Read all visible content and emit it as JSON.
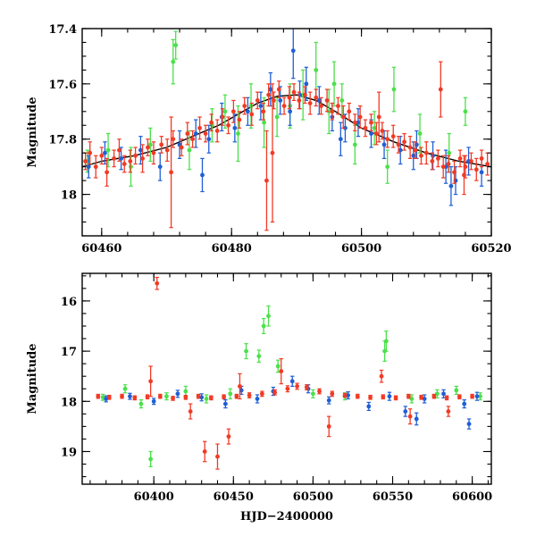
{
  "colors": {
    "red": "#f23a24",
    "blue": "#1f5fd6",
    "green": "#4be04b",
    "model": "#000000"
  },
  "chart_data": [
    {
      "type": "scatter",
      "xlabel": "",
      "ylabel": "Magnitude",
      "xlim": [
        60457,
        60520
      ],
      "ylim": [
        18.15,
        17.4
      ],
      "y_inverted": true,
      "xticks": [
        60460,
        60480,
        60500,
        60520
      ],
      "xtick_labels": [
        "60460",
        "60480",
        "60500",
        "60520"
      ],
      "yticks": [
        17.4,
        17.6,
        17.8,
        18
      ],
      "ytick_labels": [
        "17.4",
        "17.6",
        "17.8",
        "18"
      ],
      "model_curve": {
        "x": [
          60457,
          60460,
          60465,
          60470,
          60475,
          60478,
          60481,
          60484,
          60487,
          60490,
          60493,
          60496,
          60500,
          60505,
          60510,
          60515,
          60520
        ],
        "y": [
          17.9,
          17.88,
          17.86,
          17.83,
          17.78,
          17.75,
          17.71,
          17.67,
          17.645,
          17.64,
          17.66,
          17.7,
          17.76,
          17.81,
          17.85,
          17.88,
          17.9
        ]
      },
      "series": [
        {
          "color_key": "red",
          "x": [
            60457.5,
            60458.2,
            60459.1,
            60460.0,
            60460.8,
            60461.9,
            60462.7,
            60463.5,
            60464.4,
            60465.2,
            60466.3,
            60467.1,
            60468.0,
            60469.2,
            60470.1,
            60471.0,
            60472.3,
            60473.2,
            60474.0,
            60475.1,
            60476.0,
            60476.9,
            60477.8,
            60478.6,
            60479.5,
            60480.3,
            60481.2,
            60482.0,
            60483.1,
            60484.0,
            60484.9,
            60485.7,
            60486.5,
            60487.3,
            60488.1,
            60488.9,
            60489.6,
            60490.4,
            60491.3,
            60492.1,
            60493.0,
            60493.8,
            60494.7,
            60495.5,
            60496.4,
            60497.2,
            60498.1,
            60499.0,
            60499.8,
            60500.6,
            60501.5,
            60502.3,
            60503.2,
            60504.0,
            60504.9,
            60505.7,
            60506.6,
            60507.5,
            60508.3,
            60509.2,
            60510.0,
            60510.9,
            60511.8,
            60512.6,
            60513.4,
            60514.3,
            60515.2,
            60516.0,
            60516.9,
            60517.7,
            60518.5,
            60519.4,
            60470.7,
            60486.3,
            60485.4,
            60502.7,
            60512.2,
            60515.8
          ],
          "y": [
            17.88,
            17.85,
            17.9,
            17.86,
            17.92,
            17.87,
            17.84,
            17.89,
            17.88,
            17.86,
            17.87,
            17.83,
            17.85,
            17.82,
            17.84,
            17.8,
            17.83,
            17.78,
            17.8,
            17.76,
            17.78,
            17.74,
            17.77,
            17.72,
            17.75,
            17.7,
            17.73,
            17.68,
            17.71,
            17.66,
            17.7,
            17.64,
            17.66,
            17.62,
            17.68,
            17.65,
            17.63,
            17.66,
            17.64,
            17.67,
            17.65,
            17.68,
            17.66,
            17.7,
            17.68,
            17.72,
            17.7,
            17.74,
            17.72,
            17.76,
            17.74,
            17.78,
            17.77,
            17.8,
            17.79,
            17.82,
            17.81,
            17.83,
            17.84,
            17.86,
            17.85,
            17.88,
            17.87,
            17.9,
            17.89,
            17.92,
            17.87,
            17.9,
            17.88,
            17.91,
            17.87,
            17.89,
            17.92,
            17.85,
            17.95,
            17.72,
            17.62,
            17.93
          ],
          "err": [
            0.03,
            0.04,
            0.04,
            0.03,
            0.05,
            0.03,
            0.04,
            0.03,
            0.04,
            0.03,
            0.05,
            0.03,
            0.04,
            0.03,
            0.04,
            0.03,
            0.03,
            0.04,
            0.03,
            0.04,
            0.03,
            0.03,
            0.04,
            0.03,
            0.03,
            0.04,
            0.03,
            0.03,
            0.04,
            0.03,
            0.03,
            0.04,
            0.03,
            0.03,
            0.03,
            0.04,
            0.03,
            0.03,
            0.03,
            0.04,
            0.03,
            0.03,
            0.04,
            0.03,
            0.03,
            0.04,
            0.03,
            0.03,
            0.04,
            0.03,
            0.03,
            0.04,
            0.03,
            0.03,
            0.04,
            0.03,
            0.03,
            0.04,
            0.03,
            0.03,
            0.04,
            0.03,
            0.03,
            0.04,
            0.03,
            0.04,
            0.03,
            0.04,
            0.03,
            0.04,
            0.03,
            0.04,
            0.2,
            0.25,
            0.18,
            0.09,
            0.1,
            0.07
          ]
        },
        {
          "color_key": "blue",
          "x": [
            60458.0,
            60460.5,
            60463.0,
            60466.0,
            60469.0,
            60472.0,
            60474.5,
            60476.5,
            60478.5,
            60480.5,
            60482.5,
            60484.5,
            60486.0,
            60487.5,
            60489.0,
            60490.5,
            60491.5,
            60493.5,
            60495.5,
            60497.5,
            60499.5,
            60501.5,
            60503.5,
            60506.0,
            60508.5,
            60511.0,
            60513.0,
            60514.5,
            60516.5,
            60518.5,
            60489.5,
            60475.5,
            60496.8,
            60508.0,
            60513.8
          ],
          "y": [
            17.9,
            17.85,
            17.87,
            17.84,
            17.9,
            17.82,
            17.78,
            17.8,
            17.72,
            17.76,
            17.7,
            17.68,
            17.62,
            17.66,
            17.7,
            17.64,
            17.6,
            17.66,
            17.72,
            17.76,
            17.74,
            17.78,
            17.82,
            17.84,
            17.82,
            17.86,
            17.9,
            17.95,
            17.88,
            17.92,
            17.48,
            17.93,
            17.8,
            17.86,
            17.97
          ],
          "err": [
            0.04,
            0.04,
            0.04,
            0.05,
            0.05,
            0.05,
            0.05,
            0.05,
            0.05,
            0.05,
            0.05,
            0.05,
            0.06,
            0.05,
            0.05,
            0.05,
            0.06,
            0.05,
            0.05,
            0.05,
            0.05,
            0.05,
            0.05,
            0.05,
            0.05,
            0.05,
            0.06,
            0.05,
            0.05,
            0.05,
            0.1,
            0.06,
            0.06,
            0.05,
            0.07
          ]
        },
        {
          "color_key": "green",
          "x": [
            60457.8,
            60461.0,
            60464.5,
            60467.5,
            60471.0,
            60471.4,
            60473.5,
            60477.0,
            60479.0,
            60481.0,
            60483.0,
            60485.0,
            60487.0,
            60489.0,
            60491.0,
            60493.0,
            60495.0,
            60497.0,
            60499.0,
            60502.0,
            60505.0,
            60509.0,
            60513.5,
            60516.0,
            60504.0,
            60495.8
          ],
          "y": [
            17.88,
            17.84,
            17.9,
            17.82,
            17.52,
            17.46,
            17.84,
            17.75,
            17.7,
            17.78,
            17.68,
            17.74,
            17.72,
            17.68,
            17.64,
            17.55,
            17.7,
            17.66,
            17.82,
            17.76,
            17.62,
            17.78,
            17.85,
            17.7,
            17.9,
            17.6
          ],
          "err": [
            0.04,
            0.06,
            0.07,
            0.06,
            0.08,
            0.05,
            0.07,
            0.06,
            0.06,
            0.1,
            0.08,
            0.09,
            0.07,
            0.08,
            0.09,
            0.1,
            0.08,
            0.06,
            0.07,
            0.06,
            0.08,
            0.07,
            0.07,
            0.05,
            0.06,
            0.08
          ]
        }
      ]
    },
    {
      "type": "scatter",
      "xlabel": "HJD−2400000",
      "ylabel": "Magnitude",
      "xlim": [
        60355,
        60612
      ],
      "ylim": [
        19.65,
        15.45
      ],
      "y_inverted": true,
      "xticks": [
        60400,
        60450,
        60500,
        60550,
        60600
      ],
      "xtick_labels": [
        "60400",
        "60450",
        "60500",
        "60550",
        "60600"
      ],
      "yticks": [
        16,
        17,
        18,
        19
      ],
      "ytick_labels": [
        "16",
        "17",
        "18",
        "19"
      ],
      "series": [
        {
          "color_key": "red",
          "x": [
            60365,
            60372,
            60380,
            60388,
            60396,
            60404,
            60412,
            60420,
            60428,
            60436,
            60444,
            60452,
            60460,
            60468,
            60476,
            60484,
            60490,
            60496,
            60504,
            60512,
            60520,
            60528,
            60536,
            60544,
            60552,
            60560,
            60568,
            60576,
            60584,
            60592,
            60600,
            60402,
            60432,
            60440,
            60447,
            60480,
            60510,
            60543,
            60561,
            60585,
            60398,
            60423,
            60454
          ],
          "y": [
            17.9,
            17.92,
            17.9,
            17.93,
            17.91,
            17.9,
            17.94,
            17.92,
            17.9,
            17.93,
            17.91,
            17.9,
            17.88,
            17.85,
            17.82,
            17.75,
            17.7,
            17.72,
            17.8,
            17.85,
            17.88,
            17.9,
            17.92,
            17.91,
            17.93,
            17.9,
            17.92,
            17.9,
            17.93,
            17.91,
            17.9,
            15.65,
            19.0,
            19.1,
            18.7,
            17.4,
            18.5,
            17.5,
            18.3,
            18.2,
            17.6,
            18.2,
            17.7
          ],
          "err": [
            0.04,
            0.04,
            0.04,
            0.04,
            0.04,
            0.04,
            0.04,
            0.04,
            0.04,
            0.04,
            0.04,
            0.04,
            0.05,
            0.05,
            0.05,
            0.06,
            0.06,
            0.05,
            0.05,
            0.05,
            0.04,
            0.04,
            0.04,
            0.04,
            0.04,
            0.04,
            0.04,
            0.04,
            0.04,
            0.04,
            0.04,
            0.12,
            0.2,
            0.25,
            0.15,
            0.25,
            0.2,
            0.12,
            0.15,
            0.1,
            0.3,
            0.15,
            0.25
          ]
        },
        {
          "color_key": "blue",
          "x": [
            60370,
            60385,
            60400,
            60415,
            60430,
            60445,
            60455,
            60465,
            60475,
            60487,
            60497,
            60510,
            60522,
            60535,
            60548,
            60558,
            60570,
            60582,
            60595,
            60603,
            60598,
            60565
          ],
          "y": [
            17.95,
            17.9,
            18.0,
            17.85,
            17.92,
            18.05,
            17.78,
            17.95,
            17.8,
            17.6,
            17.75,
            17.98,
            17.88,
            18.1,
            17.9,
            18.2,
            17.95,
            17.85,
            18.05,
            17.9,
            18.45,
            18.35
          ],
          "err": [
            0.06,
            0.06,
            0.06,
            0.07,
            0.07,
            0.08,
            0.08,
            0.08,
            0.08,
            0.1,
            0.08,
            0.07,
            0.07,
            0.08,
            0.08,
            0.1,
            0.08,
            0.08,
            0.08,
            0.08,
            0.1,
            0.12
          ]
        },
        {
          "color_key": "green",
          "x": [
            60368,
            60382,
            60392,
            60398,
            60408,
            60420,
            60433,
            60448,
            60458,
            60466,
            60469,
            60472,
            60478,
            60500,
            60520,
            60545,
            60546,
            60562,
            60578,
            60590,
            60605
          ],
          "y": [
            17.92,
            17.75,
            18.05,
            19.15,
            17.9,
            17.8,
            17.95,
            17.85,
            17.0,
            17.1,
            16.5,
            16.3,
            17.3,
            17.85,
            17.9,
            17.0,
            16.8,
            17.95,
            17.85,
            17.78,
            17.9
          ],
          "err": [
            0.06,
            0.08,
            0.08,
            0.15,
            0.07,
            0.1,
            0.08,
            0.1,
            0.15,
            0.12,
            0.15,
            0.2,
            0.12,
            0.08,
            0.07,
            0.2,
            0.2,
            0.08,
            0.08,
            0.08,
            0.07
          ]
        }
      ]
    }
  ]
}
